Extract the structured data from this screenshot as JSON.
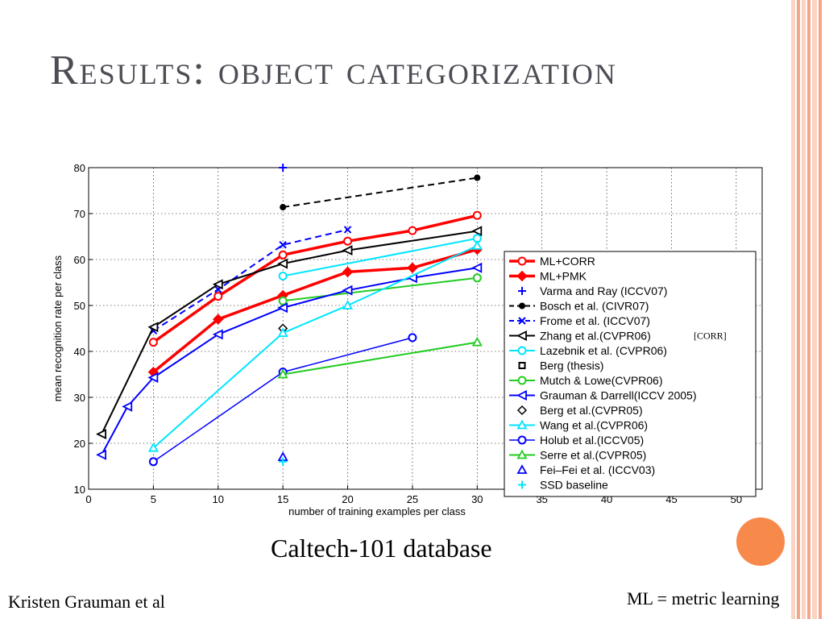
{
  "slide": {
    "title": "Results: object categorization",
    "caption": "Caltech-101 database",
    "author": "Kristen Grauman et al",
    "note": "ML = metric learning",
    "corr_annotation": "[CORR]"
  },
  "colors": {
    "accent": "#f7894b",
    "stripe_light": "#fbd3c0",
    "stripe_dark": "#f2a589",
    "title": "#4d4d55"
  },
  "chart_data": {
    "type": "line",
    "title": "",
    "xlabel": "number of training examples per class",
    "ylabel": "mean recognition rate per class",
    "xlim": [
      0,
      52
    ],
    "ylim": [
      10,
      80
    ],
    "xticks": [
      0,
      5,
      10,
      15,
      20,
      25,
      30,
      35,
      40,
      45,
      50
    ],
    "yticks": [
      10,
      20,
      30,
      40,
      50,
      60,
      70,
      80
    ],
    "grid": true,
    "legend_position": "right",
    "series": [
      {
        "name": "ML+CORR",
        "color": "#ff0000",
        "marker": "circle",
        "dash": "solid",
        "width": 3.5,
        "x": [
          5,
          10,
          15,
          20,
          25,
          30
        ],
        "y": [
          42,
          52,
          61,
          64,
          66.3,
          69.6
        ]
      },
      {
        "name": "ML+PMK",
        "color": "#ff0000",
        "marker": "diamond",
        "dash": "solid",
        "width": 3.5,
        "x": [
          5,
          10,
          15,
          20,
          25,
          30
        ],
        "y": [
          35.5,
          47,
          52.2,
          57.3,
          58.2,
          62.2
        ]
      },
      {
        "name": "Varma and Ray (ICCV07)",
        "color": "#0000ff",
        "marker": "plus",
        "dash": "none",
        "width": 1.5,
        "x": [
          15
        ],
        "y": [
          80
        ]
      },
      {
        "name": "Bosch et al. (CIVR07)",
        "color": "#000000",
        "marker": "dot",
        "dash": "dashed",
        "width": 2,
        "x": [
          15,
          30
        ],
        "y": [
          71.4,
          77.8
        ]
      },
      {
        "name": "Frome et al. (ICCV07)",
        "color": "#0000ff",
        "marker": "x",
        "dash": "dashed",
        "width": 2,
        "x": [
          5,
          10,
          15,
          20
        ],
        "y": [
          44.5,
          53.5,
          63.2,
          66.5
        ]
      },
      {
        "name": "Zhang et al.(CVPR06)",
        "color": "#000000",
        "marker": "triangle-left",
        "dash": "solid",
        "width": 2,
        "x": [
          1,
          5,
          10,
          15,
          20,
          30
        ],
        "y": [
          22,
          45.3,
          54.6,
          59.1,
          62,
          66.2
        ]
      },
      {
        "name": "Lazebnik et al. (CVPR06)",
        "color": "#00e5ff",
        "marker": "circle",
        "dash": "solid",
        "width": 2,
        "x": [
          15,
          30
        ],
        "y": [
          56.4,
          64.6
        ]
      },
      {
        "name": "Berg (thesis)",
        "color": "#000000",
        "marker": "square",
        "dash": "none",
        "width": 1.5,
        "x": [],
        "y": []
      },
      {
        "name": "Mutch & Lowe(CVPR06)",
        "color": "#22cc22",
        "marker": "circle",
        "dash": "solid",
        "width": 2,
        "x": [
          15,
          30
        ],
        "y": [
          51,
          56
        ]
      },
      {
        "name": "Grauman & Darrell(ICCV 2005)",
        "color": "#0000ff",
        "marker": "triangle-left",
        "dash": "solid",
        "width": 2,
        "x": [
          1,
          3,
          5,
          10,
          15,
          20,
          25,
          30
        ],
        "y": [
          17.5,
          28,
          34.3,
          43.7,
          49.5,
          53.3,
          56,
          58.2
        ]
      },
      {
        "name": "Berg et al.(CVPR05)",
        "color": "#000000",
        "marker": "diamond-open",
        "dash": "none",
        "width": 1.5,
        "x": [
          15
        ],
        "y": [
          45
        ]
      },
      {
        "name": "Wang et al.(CVPR06)",
        "color": "#00e5ff",
        "marker": "triangle-up",
        "dash": "solid",
        "width": 2,
        "x": [
          5,
          15,
          20,
          30
        ],
        "y": [
          19,
          44,
          50,
          63
        ]
      },
      {
        "name": "Holub et al.(ICCV05)",
        "color": "#0000ff",
        "marker": "circle",
        "dash": "solid",
        "width": 1.5,
        "x": [
          5,
          15,
          25
        ],
        "y": [
          16,
          35.5,
          43
        ]
      },
      {
        "name": "Serre et al.(CVPR05)",
        "color": "#22cc22",
        "marker": "triangle-up",
        "dash": "solid",
        "width": 2,
        "x": [
          15,
          30
        ],
        "y": [
          35,
          42
        ]
      },
      {
        "name": "Fei–Fei et al. (ICCV03)",
        "color": "#0000ff",
        "marker": "triangle-up",
        "dash": "none",
        "width": 1.5,
        "x": [
          15
        ],
        "y": [
          17
        ]
      },
      {
        "name": "SSD baseline",
        "color": "#00e5ff",
        "marker": "plus",
        "dash": "none",
        "width": 1.5,
        "x": [
          15
        ],
        "y": [
          16
        ]
      }
    ]
  }
}
